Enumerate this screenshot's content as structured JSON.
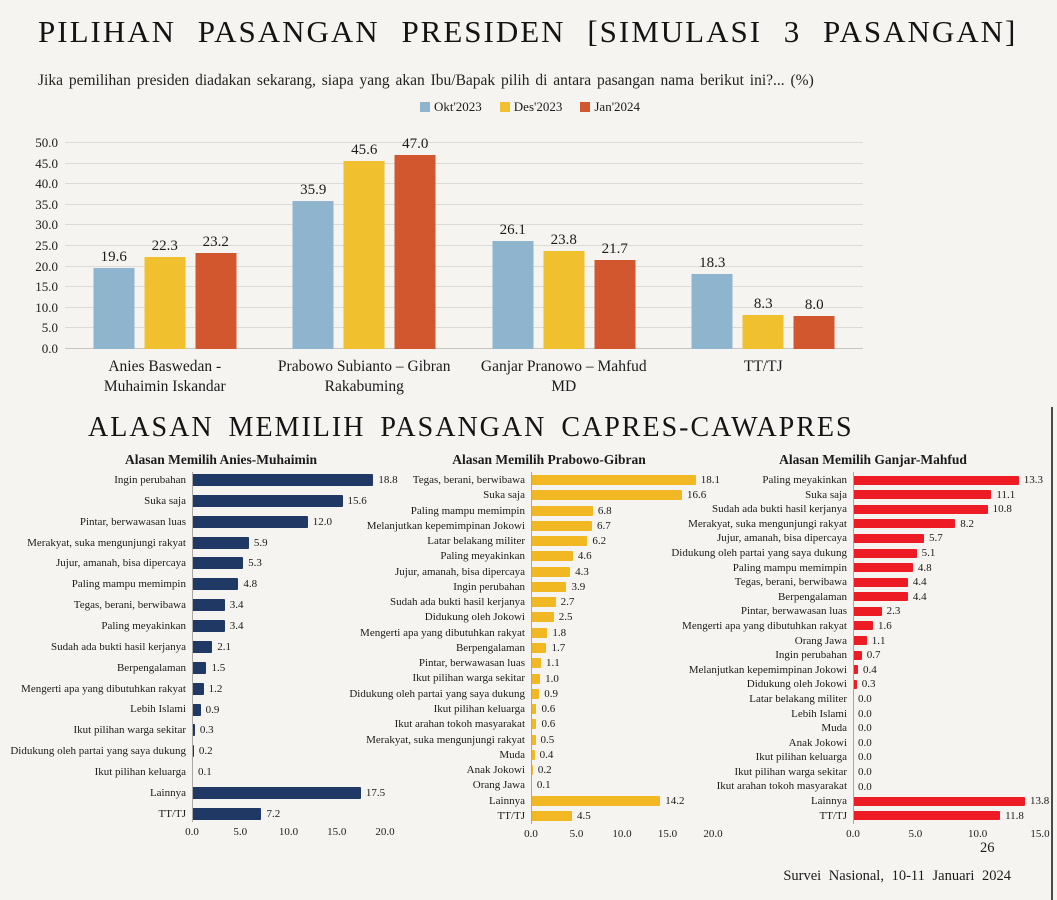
{
  "page": {
    "title": "PILIHAN PASANGAN PRESIDEN [SIMULASI 3 PASANGAN]",
    "subtitle": "Jika pemilihan presiden diadakan sekarang, siapa yang akan Ibu/Bapak pilih di antara pasangan nama berikut ini?... (%)",
    "section2_title": "ALASAN MEMILIH PASANGAN CAPRES-CAWAPRES",
    "page_number": "26",
    "footer": "Survei Nasional, 10-11 Januari 2024"
  },
  "colors": {
    "background": "#F5F4F0",
    "gridline": "#DBDAD6",
    "okt_blue": "#8FB4CE",
    "des_yellow": "#F0C02E",
    "jan_orange": "#D2572E",
    "anies_navy": "#1F3864",
    "prabowo_yellow": "#F2B824",
    "ganjar_red": "#ED1C24",
    "slide_edge": "#4A4A4A"
  },
  "chart_data": [
    {
      "type": "bar",
      "title": "PILIHAN PASANGAN PRESIDEN [SIMULASI 3 PASANGAN]",
      "subtitle": "Jika pemilihan presiden diadakan sekarang, siapa yang akan Ibu/Bapak pilih di antara pasangan nama berikut ini?... (%)",
      "categories": [
        "Anies Baswedan -\nMuhaimin Iskandar",
        "Prabowo Subianto – Gibran\nRakabuming",
        "Ganjar Pranowo – Mahfud\nMD",
        "TT/TJ"
      ],
      "series": [
        {
          "name": "Okt'2023",
          "color": "#8FB4CE",
          "values": [
            19.6,
            35.9,
            26.1,
            18.3
          ]
        },
        {
          "name": "Des'2023",
          "color": "#F0C02E",
          "values": [
            22.3,
            45.6,
            23.8,
            8.3
          ]
        },
        {
          "name": "Jan'2024",
          "color": "#D2572E",
          "values": [
            23.2,
            47.0,
            21.7,
            8.0
          ]
        }
      ],
      "ylim": [
        0,
        50
      ],
      "ytick_step": 5,
      "grid": true,
      "legend_position": "top",
      "value_labels": true
    },
    {
      "type": "bar",
      "orientation": "horizontal",
      "title": "Alasan Memilih Anies-Muhaimin",
      "bar_color": "#1F3864",
      "xlim": [
        0,
        20
      ],
      "xticks": [
        0,
        5,
        10,
        15,
        20
      ],
      "categories": [
        "Ingin perubahan",
        "Suka saja",
        "Pintar, berwawasan luas",
        "Merakyat, suka mengunjungi rakyat",
        "Jujur, amanah, bisa dipercaya",
        "Paling mampu memimpin",
        "Tegas, berani, berwibawa",
        "Paling meyakinkan",
        "Sudah ada bukti hasil kerjanya",
        "Berpengalaman",
        "Mengerti apa yang dibutuhkan rakyat",
        "Lebih Islami",
        "Ikut pilihan warga sekitar",
        "Didukung oleh partai yang saya dukung",
        "Ikut pilihan keluarga",
        "Lainnya",
        "TT/TJ"
      ],
      "values": [
        18.8,
        15.6,
        12.0,
        5.9,
        5.3,
        4.8,
        3.4,
        3.4,
        2.1,
        1.5,
        1.2,
        0.9,
        0.3,
        0.2,
        0.1,
        17.5,
        7.2
      ]
    },
    {
      "type": "bar",
      "orientation": "horizontal",
      "title": "Alasan Memilih Prabowo-Gibran",
      "bar_color": "#F2B824",
      "xlim": [
        0,
        20
      ],
      "xticks": [
        0,
        5,
        10,
        15,
        20
      ],
      "categories": [
        "Tegas, berani, berwibawa",
        "Suka saja",
        "Paling mampu memimpin",
        "Melanjutkan kepemimpinan Jokowi",
        "Latar belakang militer",
        "Paling meyakinkan",
        "Jujur, amanah, bisa dipercaya",
        "Ingin perubahan",
        "Sudah ada bukti hasil kerjanya",
        "Didukung oleh Jokowi",
        "Mengerti apa yang dibutuhkan rakyat",
        "Berpengalaman",
        "Pintar, berwawasan luas",
        "Ikut pilihan warga sekitar",
        "Didukung oleh partai yang saya dukung",
        "Ikut pilihan keluarga",
        "Ikut arahan tokoh masyarakat",
        "Merakyat, suka mengunjungi rakyat",
        "Muda",
        "Anak Jokowi",
        "Orang Jawa",
        "Lainnya",
        "TT/TJ"
      ],
      "values": [
        18.1,
        16.6,
        6.8,
        6.7,
        6.2,
        4.6,
        4.3,
        3.9,
        2.7,
        2.5,
        1.8,
        1.7,
        1.1,
        1.0,
        0.9,
        0.6,
        0.6,
        0.5,
        0.4,
        0.2,
        0.1,
        14.2,
        4.5
      ]
    },
    {
      "type": "bar",
      "orientation": "horizontal",
      "title": "Alasan Memilih Ganjar-Mahfud",
      "bar_color": "#ED1C24",
      "xlim": [
        0,
        15
      ],
      "xticks": [
        0,
        5,
        10,
        15
      ],
      "categories": [
        "Paling meyakinkan",
        "Suka saja",
        "Sudah ada bukti hasil kerjanya",
        "Merakyat, suka mengunjungi rakyat",
        "Jujur, amanah, bisa dipercaya",
        "Didukung oleh partai yang saya dukung",
        "Paling mampu memimpin",
        "Tegas, berani, berwibawa",
        "Berpengalaman",
        "Pintar, berwawasan luas",
        "Mengerti apa yang dibutuhkan rakyat",
        "Orang Jawa",
        "Ingin perubahan",
        "Melanjutkan kepemimpinan Jokowi",
        "Didukung oleh Jokowi",
        "Latar belakang militer",
        "Lebih Islami",
        "Muda",
        "Anak Jokowi",
        "Ikut pilihan keluarga",
        "Ikut pilihan warga sekitar",
        "Ikut arahan tokoh masyarakat",
        "Lainnya",
        "TT/TJ"
      ],
      "values": [
        13.3,
        11.1,
        10.8,
        8.2,
        5.7,
        5.1,
        4.8,
        4.4,
        4.4,
        2.3,
        1.6,
        1.1,
        0.7,
        0.4,
        0.3,
        0.0,
        0.0,
        0.0,
        0.0,
        0.0,
        0.0,
        0.0,
        13.8,
        11.8
      ]
    }
  ]
}
